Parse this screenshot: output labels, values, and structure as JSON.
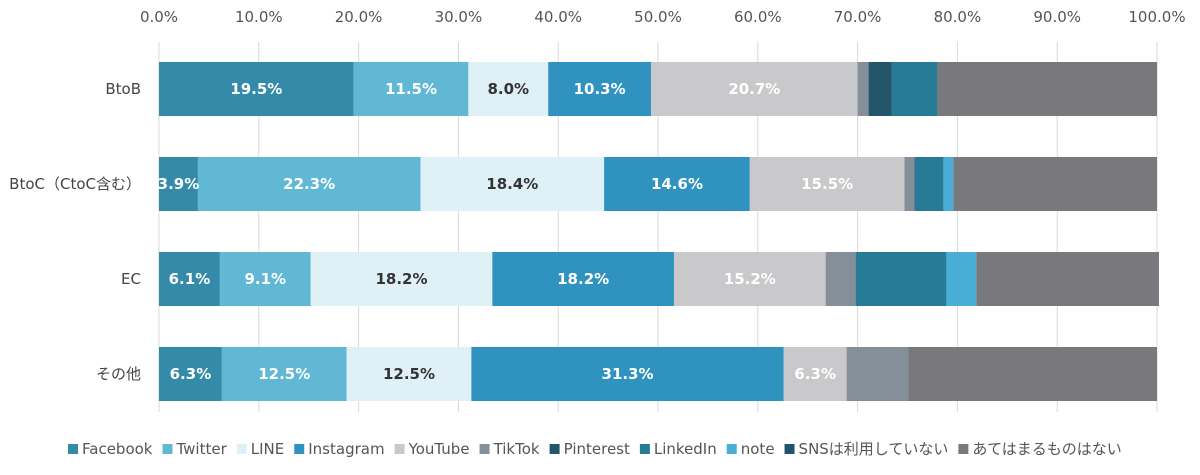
{
  "chart_data": {
    "type": "bar",
    "orientation": "horizontal",
    "stacked": true,
    "percent_stacked": true,
    "categories": [
      "BtoB",
      "BtoC（CtoC含む）",
      "EC",
      "その他"
    ],
    "xlim": [
      0,
      100
    ],
    "x_ticks": [
      "0.0%",
      "10.0%",
      "20.0%",
      "30.0%",
      "40.0%",
      "50.0%",
      "60.0%",
      "70.0%",
      "80.0%",
      "90.0%",
      "100.0%"
    ],
    "x_tick_values": [
      0,
      10,
      20,
      30,
      40,
      50,
      60,
      70,
      80,
      90,
      100
    ],
    "x_axis_position": "top",
    "grid": true,
    "legend_position": "bottom",
    "series": [
      {
        "name": "Facebook",
        "color": "#348aa9",
        "label_color": "#ffffff",
        "values": [
          19.5,
          3.9,
          6.1,
          6.3
        ],
        "labels": [
          "19.5%",
          "3.9%",
          "6.1%",
          "6.3%"
        ]
      },
      {
        "name": "Twitter",
        "color": "#60b8d5",
        "label_color": "#ffffff",
        "values": [
          11.5,
          22.3,
          9.1,
          12.5
        ],
        "labels": [
          "11.5%",
          "22.3%",
          "9.1%",
          "12.5%"
        ]
      },
      {
        "name": "LINE",
        "color": "#dff0f7",
        "label_color": "#333333",
        "values": [
          8.0,
          18.4,
          18.2,
          12.5
        ],
        "labels": [
          "8.0%",
          "18.4%",
          "18.2%",
          "12.5%"
        ]
      },
      {
        "name": "Instagram",
        "color": "#3093bf",
        "label_color": "#ffffff",
        "values": [
          10.3,
          14.6,
          18.2,
          31.3
        ],
        "labels": [
          "10.3%",
          "14.6%",
          "18.2%",
          "31.3%"
        ]
      },
      {
        "name": "YouTube",
        "color": "#c9c9cc",
        "label_color": "#ffffff",
        "values": [
          20.7,
          15.5,
          15.2,
          6.3
        ],
        "labels": [
          "20.7%",
          "15.5%",
          "15.2%",
          "6.3%"
        ]
      },
      {
        "name": "TikTok",
        "color": "#848f99",
        "label_color": "#ffffff",
        "values": [
          1.1,
          1.0,
          3.0,
          6.2
        ],
        "labels": [
          "",
          "",
          "",
          ""
        ]
      },
      {
        "name": "Pinterest",
        "color": "#24566b",
        "label_color": "#ffffff",
        "values": [
          2.3,
          0,
          0,
          0
        ],
        "labels": [
          "",
          "",
          "",
          ""
        ]
      },
      {
        "name": "LinkedIn",
        "color": "#277b95",
        "label_color": "#ffffff",
        "values": [
          4.6,
          2.9,
          9.1,
          0
        ],
        "labels": [
          "",
          "",
          "",
          ""
        ]
      },
      {
        "name": "note",
        "color": "#4aadd6",
        "label_color": "#ffffff",
        "values": [
          0,
          1.0,
          3.0,
          0
        ],
        "labels": [
          "",
          "",
          "",
          ""
        ]
      },
      {
        "name": "SNSは利用していない",
        "color": "#1e5670",
        "label_color": "#ffffff",
        "values": [
          0,
          0,
          0,
          0
        ],
        "labels": [
          "",
          "",
          "",
          ""
        ]
      },
      {
        "name": "あてはまるものはない",
        "color": "#79797d",
        "label_color": "#ffffff",
        "values": [
          22.0,
          20.4,
          18.3,
          24.9
        ],
        "labels": [
          "",
          "",
          "",
          ""
        ]
      }
    ]
  }
}
